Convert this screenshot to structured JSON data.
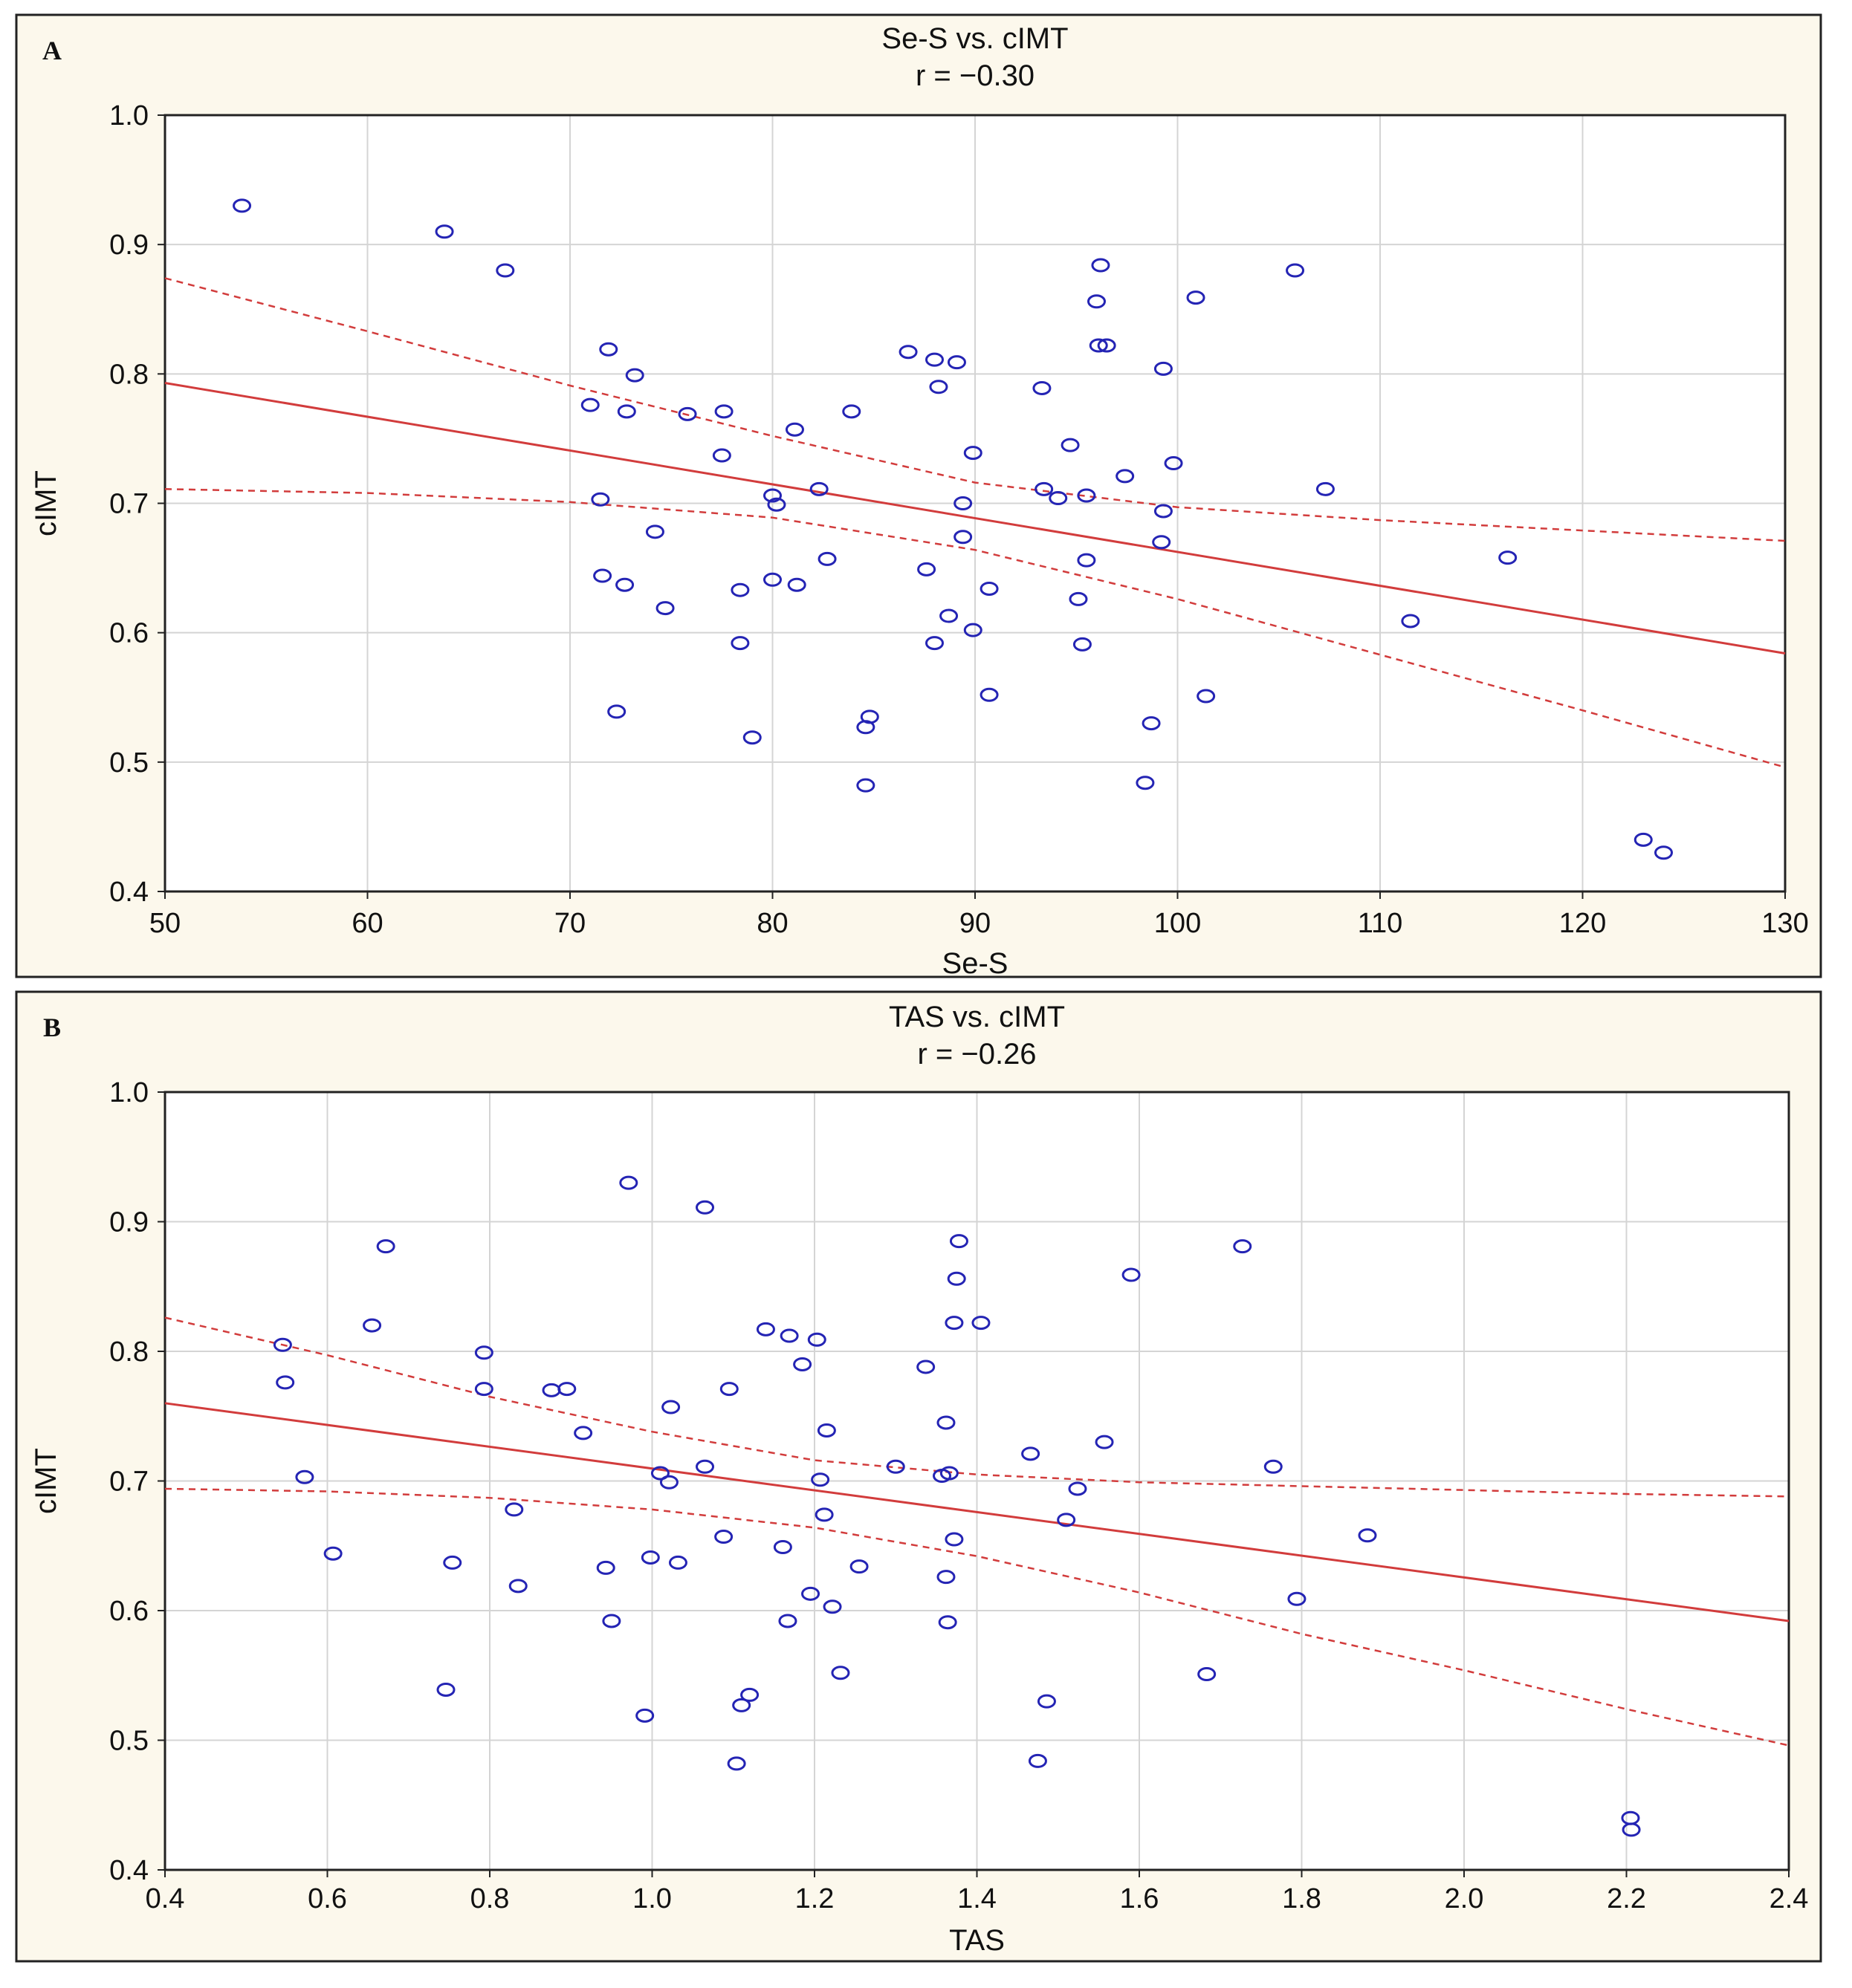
{
  "colors": {
    "panel_background": "#fcf8ec",
    "plot_background": "#ffffff",
    "grid": "#d4d4d4",
    "marker": "#2424b4",
    "fit_line": "#d23c3c",
    "frame": "#222222"
  },
  "chart_data": [
    {
      "panel_label": "A",
      "type": "scatter",
      "title": "Se-S vs. cIMT",
      "subtitle": "r = −0.30",
      "xlabel": "Se-S",
      "ylabel": "cIMT",
      "xlim": [
        50,
        130
      ],
      "ylim": [
        0.4,
        1.0
      ],
      "xticks": [
        50,
        60,
        70,
        80,
        90,
        100,
        110,
        120,
        130
      ],
      "yticks": [
        0.4,
        0.5,
        0.6,
        0.7,
        0.8,
        0.9,
        1.0
      ],
      "xtick_labels": [
        "50",
        "60",
        "70",
        "80",
        "90",
        "100",
        "110",
        "120",
        "130"
      ],
      "ytick_labels": [
        "0.4",
        "0.5",
        "0.6",
        "0.7",
        "0.8",
        "0.9",
        "1.0"
      ],
      "grid": true,
      "marker": "open-circle",
      "points": [
        [
          53.8,
          0.93
        ],
        [
          63.8,
          0.91
        ],
        [
          66.8,
          0.88
        ],
        [
          71.0,
          0.776
        ],
        [
          71.5,
          0.703
        ],
        [
          71.6,
          0.644
        ],
        [
          71.9,
          0.819
        ],
        [
          72.3,
          0.539
        ],
        [
          72.7,
          0.637
        ],
        [
          72.8,
          0.771
        ],
        [
          73.2,
          0.799
        ],
        [
          74.2,
          0.678
        ],
        [
          74.7,
          0.619
        ],
        [
          75.8,
          0.769
        ],
        [
          77.5,
          0.737
        ],
        [
          77.6,
          0.771
        ],
        [
          78.4,
          0.633
        ],
        [
          78.4,
          0.592
        ],
        [
          79.0,
          0.519
        ],
        [
          80.0,
          0.641
        ],
        [
          80.0,
          0.706
        ],
        [
          80.2,
          0.699
        ],
        [
          81.1,
          0.757
        ],
        [
          81.2,
          0.637
        ],
        [
          82.3,
          0.711
        ],
        [
          82.7,
          0.657
        ],
        [
          83.9,
          0.771
        ],
        [
          84.6,
          0.482
        ],
        [
          84.6,
          0.527
        ],
        [
          84.8,
          0.535
        ],
        [
          86.7,
          0.817
        ],
        [
          87.6,
          0.649
        ],
        [
          88.0,
          0.811
        ],
        [
          88.0,
          0.592
        ],
        [
          88.2,
          0.79
        ],
        [
          88.7,
          0.613
        ],
        [
          89.1,
          0.809
        ],
        [
          89.4,
          0.674
        ],
        [
          89.4,
          0.7
        ],
        [
          89.9,
          0.739
        ],
        [
          89.9,
          0.602
        ],
        [
          90.7,
          0.552
        ],
        [
          90.7,
          0.634
        ],
        [
          93.3,
          0.789
        ],
        [
          93.4,
          0.711
        ],
        [
          94.1,
          0.704
        ],
        [
          94.7,
          0.745
        ],
        [
          95.1,
          0.626
        ],
        [
          95.3,
          0.591
        ],
        [
          95.5,
          0.656
        ],
        [
          95.5,
          0.706
        ],
        [
          96.0,
          0.856
        ],
        [
          96.1,
          0.822
        ],
        [
          96.2,
          0.884
        ],
        [
          96.5,
          0.822
        ],
        [
          97.4,
          0.721
        ],
        [
          98.4,
          0.484
        ],
        [
          98.7,
          0.53
        ],
        [
          99.2,
          0.67
        ],
        [
          99.3,
          0.804
        ],
        [
          99.3,
          0.694
        ],
        [
          99.8,
          0.731
        ],
        [
          100.9,
          0.859
        ],
        [
          101.4,
          0.551
        ],
        [
          105.8,
          0.88
        ],
        [
          107.3,
          0.711
        ],
        [
          111.5,
          0.609
        ],
        [
          116.3,
          0.658
        ],
        [
          123.0,
          0.44
        ],
        [
          124.0,
          0.43
        ]
      ],
      "fit_line": [
        [
          50,
          0.793
        ],
        [
          130,
          0.584
        ]
      ],
      "ci_upper": [
        [
          50,
          0.874
        ],
        [
          60,
          0.833
        ],
        [
          70,
          0.791
        ],
        [
          80,
          0.752
        ],
        [
          90,
          0.716
        ],
        [
          100,
          0.697
        ],
        [
          110,
          0.687
        ],
        [
          120,
          0.679
        ],
        [
          130,
          0.671
        ]
      ],
      "ci_lower": [
        [
          50,
          0.711
        ],
        [
          60,
          0.708
        ],
        [
          70,
          0.701
        ],
        [
          80,
          0.689
        ],
        [
          90,
          0.664
        ],
        [
          100,
          0.626
        ],
        [
          110,
          0.583
        ],
        [
          120,
          0.54
        ],
        [
          130,
          0.496
        ]
      ]
    },
    {
      "panel_label": "B",
      "type": "scatter",
      "title": "TAS vs. cIMT",
      "subtitle": "r = −0.26",
      "xlabel": "TAS",
      "ylabel": "cIMT",
      "xlim": [
        0.4,
        2.4
      ],
      "ylim": [
        0.4,
        1.0
      ],
      "xticks": [
        0.4,
        0.6,
        0.8,
        1.0,
        1.2,
        1.4,
        1.6,
        1.8,
        2.0,
        2.2,
        2.4
      ],
      "yticks": [
        0.4,
        0.5,
        0.6,
        0.7,
        0.8,
        0.9,
        1.0
      ],
      "xtick_labels": [
        "0.4",
        "0.6",
        "0.8",
        "1.0",
        "1.2",
        "1.4",
        "1.6",
        "1.8",
        "2.0",
        "2.2",
        "2.4"
      ],
      "ytick_labels": [
        "0.4",
        "0.5",
        "0.6",
        "0.7",
        "0.8",
        "0.9",
        "1.0"
      ],
      "grid": true,
      "marker": "open-circle",
      "points": [
        [
          0.545,
          0.805
        ],
        [
          0.548,
          0.776
        ],
        [
          0.572,
          0.703
        ],
        [
          0.607,
          0.644
        ],
        [
          0.655,
          0.82
        ],
        [
          0.672,
          0.881
        ],
        [
          0.746,
          0.539
        ],
        [
          0.754,
          0.637
        ],
        [
          0.793,
          0.799
        ],
        [
          0.793,
          0.771
        ],
        [
          0.83,
          0.678
        ],
        [
          0.835,
          0.619
        ],
        [
          0.876,
          0.77
        ],
        [
          0.895,
          0.771
        ],
        [
          0.915,
          0.737
        ],
        [
          0.943,
          0.633
        ],
        [
          0.95,
          0.592
        ],
        [
          0.971,
          0.93
        ],
        [
          0.991,
          0.519
        ],
        [
          0.998,
          0.641
        ],
        [
          1.01,
          0.706
        ],
        [
          1.021,
          0.699
        ],
        [
          1.023,
          0.757
        ],
        [
          1.032,
          0.637
        ],
        [
          1.065,
          0.711
        ],
        [
          1.065,
          0.911
        ],
        [
          1.088,
          0.657
        ],
        [
          1.095,
          0.771
        ],
        [
          1.104,
          0.482
        ],
        [
          1.11,
          0.527
        ],
        [
          1.12,
          0.535
        ],
        [
          1.14,
          0.817
        ],
        [
          1.161,
          0.649
        ],
        [
          1.167,
          0.592
        ],
        [
          1.169,
          0.812
        ],
        [
          1.185,
          0.79
        ],
        [
          1.195,
          0.613
        ],
        [
          1.203,
          0.809
        ],
        [
          1.207,
          0.701
        ],
        [
          1.212,
          0.674
        ],
        [
          1.215,
          0.739
        ],
        [
          1.222,
          0.603
        ],
        [
          1.232,
          0.552
        ],
        [
          1.255,
          0.634
        ],
        [
          1.3,
          0.711
        ],
        [
          1.337,
          0.788
        ],
        [
          1.357,
          0.704
        ],
        [
          1.362,
          0.626
        ],
        [
          1.362,
          0.745
        ],
        [
          1.364,
          0.591
        ],
        [
          1.366,
          0.706
        ],
        [
          1.372,
          0.655
        ],
        [
          1.372,
          0.822
        ],
        [
          1.375,
          0.856
        ],
        [
          1.378,
          0.885
        ],
        [
          1.405,
          0.822
        ],
        [
          1.466,
          0.721
        ],
        [
          1.475,
          0.484
        ],
        [
          1.486,
          0.53
        ],
        [
          1.51,
          0.67
        ],
        [
          1.524,
          0.694
        ],
        [
          1.557,
          0.73
        ],
        [
          1.59,
          0.859
        ],
        [
          1.683,
          0.551
        ],
        [
          1.727,
          0.881
        ],
        [
          1.765,
          0.711
        ],
        [
          1.794,
          0.609
        ],
        [
          1.881,
          0.658
        ],
        [
          2.205,
          0.44
        ],
        [
          2.206,
          0.431
        ]
      ],
      "fit_line": [
        [
          0.4,
          0.76
        ],
        [
          2.4,
          0.592
        ]
      ],
      "ci_upper": [
        [
          0.4,
          0.826
        ],
        [
          0.6,
          0.797
        ],
        [
          0.8,
          0.765
        ],
        [
          1.0,
          0.738
        ],
        [
          1.2,
          0.716
        ],
        [
          1.4,
          0.705
        ],
        [
          1.6,
          0.699
        ],
        [
          1.8,
          0.696
        ],
        [
          2.0,
          0.693
        ],
        [
          2.2,
          0.69
        ],
        [
          2.4,
          0.688
        ]
      ],
      "ci_lower": [
        [
          0.4,
          0.694
        ],
        [
          0.6,
          0.692
        ],
        [
          0.8,
          0.687
        ],
        [
          1.0,
          0.678
        ],
        [
          1.2,
          0.664
        ],
        [
          1.4,
          0.642
        ],
        [
          1.6,
          0.614
        ],
        [
          1.8,
          0.582
        ],
        [
          2.0,
          0.554
        ],
        [
          2.2,
          0.524
        ],
        [
          2.4,
          0.496
        ]
      ]
    }
  ]
}
